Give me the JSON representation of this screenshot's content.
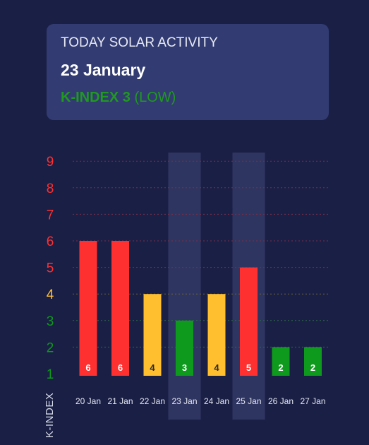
{
  "header": {
    "title": "TODAY SOLAR ACTIVITY",
    "date": "23 January",
    "kindex_label": "K-INDEX 3",
    "kindex_level": "(LOW)"
  },
  "colors": {
    "high": "#ff3030",
    "moderate": "#ffbf2e",
    "low": "#0e9a1c",
    "background": "#1a1f45",
    "card": "#323c72"
  },
  "chart_data": {
    "type": "bar",
    "ylabel": "K-INDEX",
    "ylim": [
      1,
      9
    ],
    "y_ticks": [
      1,
      2,
      3,
      4,
      5,
      6,
      7,
      8,
      9
    ],
    "categories": [
      "20 Jan",
      "21 Jan",
      "22 Jan",
      "23 Jan",
      "24 Jan",
      "25 Jan",
      "26 Jan",
      "27 Jan"
    ],
    "values": [
      6,
      6,
      4,
      3,
      4,
      5,
      2,
      2
    ],
    "highlighted": [
      "23 Jan",
      "25 Jan"
    ],
    "grid": "dotted horizontal"
  }
}
